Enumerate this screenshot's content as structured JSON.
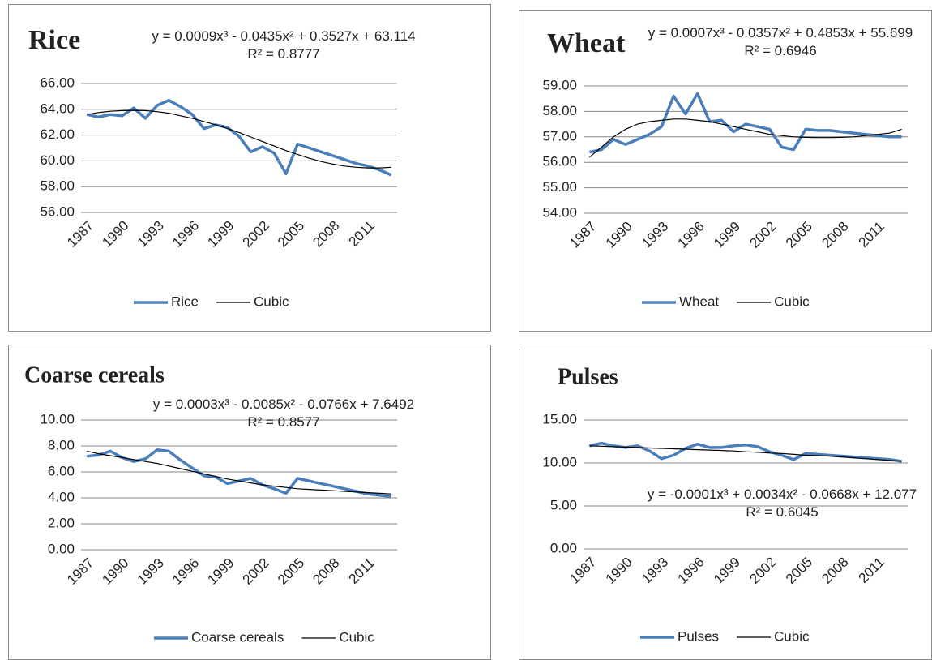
{
  "chart_data": [
    {
      "type": "line",
      "title": "Rice",
      "annotations": [
        "y = 0.0009x³ - 0.0435x² + 0.3527x + 63.114",
        "R² = 0.8777"
      ],
      "categories": [
        "1987",
        null,
        null,
        "1990",
        null,
        null,
        "1993",
        null,
        null,
        "1996",
        null,
        null,
        "1999",
        null,
        null,
        "2002",
        null,
        null,
        "2005",
        null,
        null,
        "2008",
        null,
        null,
        "2011",
        null,
        null
      ],
      "series": [
        {
          "name": "Rice",
          "color": "#4a7ebb",
          "values": [
            63.6,
            63.4,
            63.6,
            63.5,
            64.1,
            63.3,
            64.3,
            64.7,
            64.2,
            63.6,
            62.5,
            62.8,
            62.6,
            61.9,
            60.7,
            61.1,
            60.6,
            59.0,
            61.3,
            61.0,
            60.7,
            60.4,
            60.1,
            59.8,
            59.6,
            59.3,
            58.9
          ]
        },
        {
          "name": "Cubic",
          "color": "#000000",
          "values": [
            63.6,
            63.75,
            63.85,
            63.9,
            63.92,
            63.9,
            63.82,
            63.7,
            63.5,
            63.3,
            63.05,
            62.8,
            62.5,
            62.2,
            61.85,
            61.5,
            61.15,
            60.8,
            60.5,
            60.2,
            59.95,
            59.75,
            59.6,
            59.5,
            59.45,
            59.45,
            59.5
          ]
        }
      ],
      "ylim": [
        56,
        66
      ],
      "yticks": [
        {
          "value": 56,
          "label": "56.00"
        },
        {
          "value": 58,
          "label": "58.00"
        },
        {
          "value": 60,
          "label": "60.00"
        },
        {
          "value": 62,
          "label": "62.00"
        },
        {
          "value": 64,
          "label": "64.00"
        },
        {
          "value": 66,
          "label": "66.00"
        }
      ],
      "grid": true,
      "legend": "bottom"
    },
    {
      "type": "line",
      "title": "Wheat",
      "annotations": [
        "y = 0.0007x³ - 0.0357x² + 0.4853x + 55.699",
        "R² = 0.6946"
      ],
      "categories": [
        "1987",
        null,
        null,
        "1990",
        null,
        null,
        "1993",
        null,
        null,
        "1996",
        null,
        null,
        "1999",
        null,
        null,
        "2002",
        null,
        null,
        "2005",
        null,
        null,
        "2008",
        null,
        null,
        "2011",
        null,
        null
      ],
      "series": [
        {
          "name": "Wheat",
          "color": "#4a7ebb",
          "values": [
            56.4,
            56.5,
            56.9,
            56.7,
            56.9,
            57.1,
            57.4,
            58.6,
            57.9,
            58.7,
            57.6,
            57.65,
            57.2,
            57.5,
            57.4,
            57.3,
            56.6,
            56.5,
            57.3,
            57.25,
            57.25,
            57.2,
            57.15,
            57.1,
            57.05,
            57.0,
            57.0
          ]
        },
        {
          "name": "Cubic",
          "color": "#000000",
          "values": [
            56.2,
            56.6,
            57.0,
            57.3,
            57.5,
            57.6,
            57.65,
            57.7,
            57.7,
            57.65,
            57.6,
            57.5,
            57.4,
            57.3,
            57.2,
            57.1,
            57.05,
            57.0,
            56.98,
            56.97,
            56.97,
            56.98,
            57.0,
            57.05,
            57.1,
            57.15,
            57.3
          ]
        }
      ],
      "ylim": [
        54,
        59
      ],
      "yticks": [
        {
          "value": 54,
          "label": "54.00"
        },
        {
          "value": 55,
          "label": "55.00"
        },
        {
          "value": 56,
          "label": "56.00"
        },
        {
          "value": 57,
          "label": "57.00"
        },
        {
          "value": 58,
          "label": "58.00"
        },
        {
          "value": 59,
          "label": "59.00"
        }
      ],
      "grid": true,
      "legend": "bottom"
    },
    {
      "type": "line",
      "title": "Coarse cereals",
      "annotations": [
        "y = 0.0003x³ - 0.0085x² - 0.0766x + 7.6492",
        "R² = 0.8577"
      ],
      "categories": [
        "1987",
        null,
        null,
        "1990",
        null,
        null,
        "1993",
        null,
        null,
        "1996",
        null,
        null,
        "1999",
        null,
        null,
        "2002",
        null,
        null,
        "2005",
        null,
        null,
        "2008",
        null,
        null,
        "2011",
        null,
        null
      ],
      "series": [
        {
          "name": "Coarse cereals",
          "color": "#4a7ebb",
          "values": [
            7.2,
            7.3,
            7.6,
            7.1,
            6.8,
            7.0,
            7.7,
            7.6,
            6.9,
            6.3,
            5.7,
            5.6,
            5.1,
            5.3,
            5.5,
            5.0,
            4.7,
            4.35,
            5.5,
            5.3,
            5.1,
            4.9,
            4.7,
            4.5,
            4.3,
            4.2,
            4.1
          ]
        },
        {
          "name": "Cubic",
          "color": "#000000",
          "values": [
            7.6,
            7.4,
            7.25,
            7.1,
            6.95,
            6.8,
            6.65,
            6.45,
            6.25,
            6.05,
            5.85,
            5.65,
            5.45,
            5.3,
            5.15,
            5.0,
            4.9,
            4.8,
            4.7,
            4.65,
            4.6,
            4.55,
            4.5,
            4.45,
            4.4,
            4.35,
            4.3
          ]
        }
      ],
      "ylim": [
        0,
        10
      ],
      "yticks": [
        {
          "value": 0,
          "label": "0.00"
        },
        {
          "value": 2,
          "label": "2.00"
        },
        {
          "value": 4,
          "label": "4.00"
        },
        {
          "value": 6,
          "label": "6.00"
        },
        {
          "value": 8,
          "label": "8.00"
        },
        {
          "value": 10,
          "label": "10.00"
        }
      ],
      "grid": true,
      "legend": "bottom"
    },
    {
      "type": "line",
      "title": "Pulses",
      "annotations": [
        "y = -0.0001x³ + 0.0034x² - 0.0668x + 12.077",
        "R² = 0.6045"
      ],
      "categories": [
        "1987",
        null,
        null,
        "1990",
        null,
        null,
        "1993",
        null,
        null,
        "1996",
        null,
        null,
        "1999",
        null,
        null,
        "2002",
        null,
        null,
        "2005",
        null,
        null,
        "2008",
        null,
        null,
        "2011",
        null,
        null
      ],
      "series": [
        {
          "name": "Pulses",
          "color": "#4a7ebb",
          "values": [
            12.0,
            12.3,
            12.0,
            11.8,
            12.0,
            11.4,
            10.5,
            10.9,
            11.7,
            12.2,
            11.8,
            11.8,
            12.0,
            12.1,
            11.9,
            11.3,
            10.9,
            10.4,
            11.1,
            11.0,
            10.9,
            10.8,
            10.7,
            10.6,
            10.5,
            10.4,
            10.2
          ]
        },
        {
          "name": "Cubic",
          "color": "#000000",
          "values": [
            12.0,
            11.95,
            11.9,
            11.85,
            11.8,
            11.75,
            11.7,
            11.65,
            11.6,
            11.55,
            11.5,
            11.45,
            11.4,
            11.3,
            11.25,
            11.15,
            11.1,
            11.0,
            10.9,
            10.85,
            10.8,
            10.7,
            10.6,
            10.5,
            10.4,
            10.3,
            10.2
          ]
        }
      ],
      "ylim": [
        0,
        15
      ],
      "yticks": [
        {
          "value": 0,
          "label": "0.00"
        },
        {
          "value": 5,
          "label": "5.00"
        },
        {
          "value": 10,
          "label": "10.00"
        },
        {
          "value": 15,
          "label": "15.00"
        }
      ],
      "grid": true,
      "legend": "bottom"
    }
  ]
}
